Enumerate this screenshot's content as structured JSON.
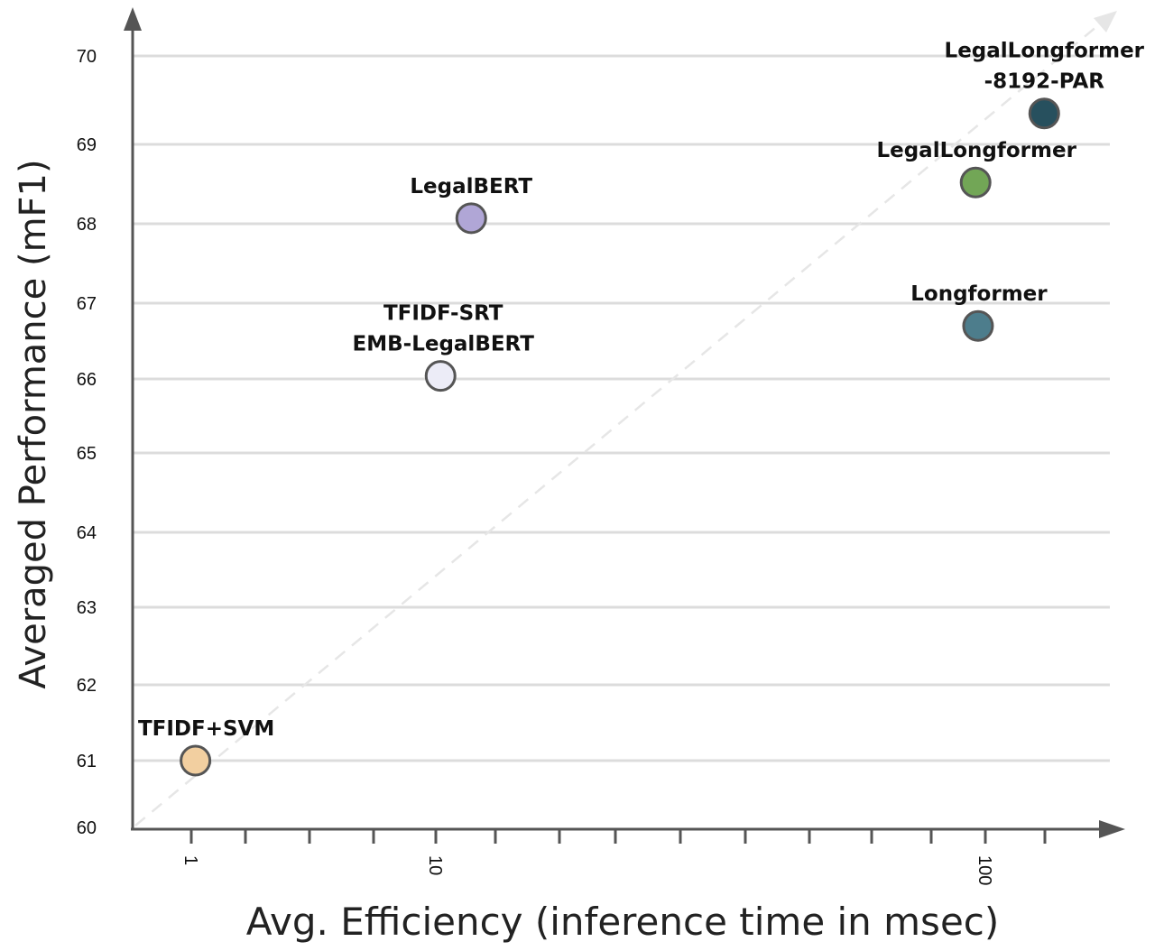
{
  "chart_data": {
    "type": "scatter",
    "title": "",
    "xlabel": "Avg. Efficiency (inference time in msec)",
    "ylabel": "Averaged Performance (mF1)",
    "x_scale": "log",
    "x_tick_labels": [
      "1",
      "10",
      "100"
    ],
    "x_ticks": [
      1,
      10,
      100
    ],
    "y_ticks": [
      60,
      61,
      62,
      63,
      64,
      65,
      66,
      67,
      68,
      69,
      70
    ],
    "y_tick_labels": [
      "60",
      "61",
      "62",
      "63",
      "64",
      "65",
      "66",
      "67",
      "68",
      "69",
      "70"
    ],
    "ylim": [
      60,
      70
    ],
    "grid": "horizontal",
    "trend_line": "dashed diagonal arrow",
    "points": [
      {
        "label": [
          "TFIDF+SVM"
        ],
        "x": 1.04,
        "y": 61.0,
        "color": "#f2cfa0"
      },
      {
        "label": [
          "TFIDF-SRT",
          "EMB-LegalBERT"
        ],
        "x": 10.2,
        "y": 66.04,
        "color": "#ececf7"
      },
      {
        "label": [
          "LegalBERT"
        ],
        "x": 11.6,
        "y": 68.07,
        "color": "#b0a6d6"
      },
      {
        "label": [
          "LegalLongformer"
        ],
        "x": 96,
        "y": 68.52,
        "color": "#72a656"
      },
      {
        "label": [
          "Longformer"
        ],
        "x": 97,
        "y": 66.7,
        "color": "#4d7d8c"
      },
      {
        "label": [
          "LegalLongformer",
          "-8192-PAR"
        ],
        "x": 128,
        "y": 69.35,
        "color": "#27505e"
      }
    ]
  }
}
